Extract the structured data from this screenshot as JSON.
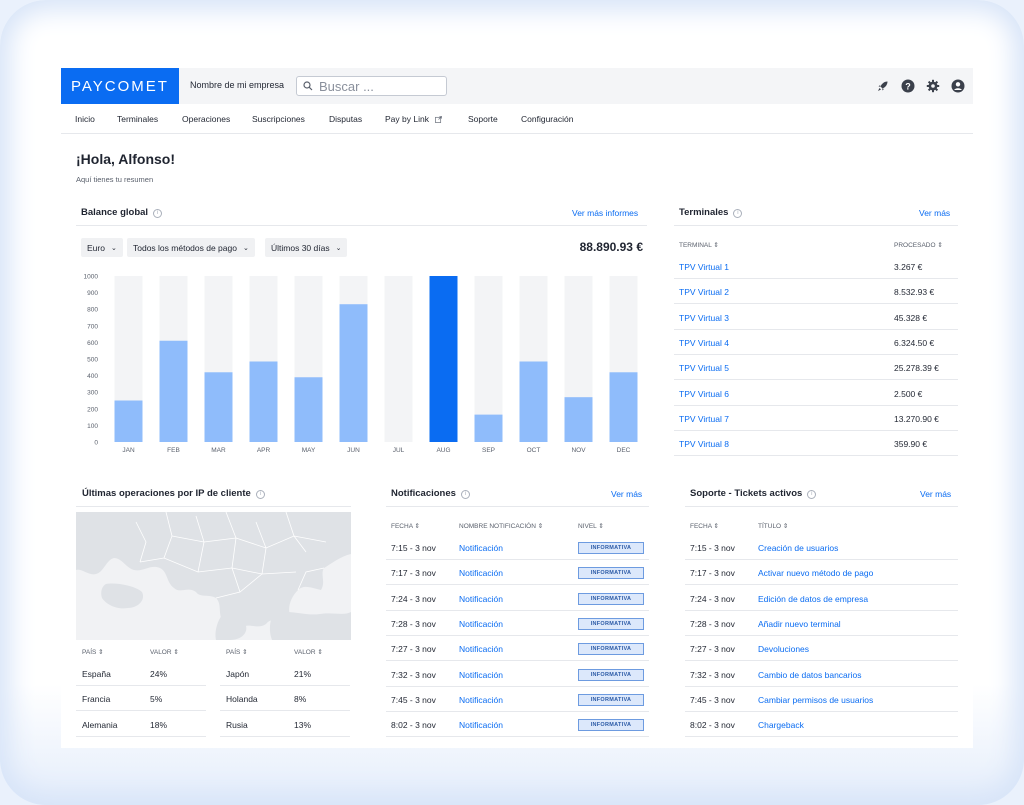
{
  "brand": {
    "logo": "PAYCOMET",
    "accent": "#0a6cf2"
  },
  "topbar": {
    "company": "Nombre de mi empresa",
    "search_placeholder": "Buscar ...",
    "icons": [
      "rocket-icon",
      "help-icon",
      "settings-icon",
      "user-icon"
    ]
  },
  "nav": [
    "Inicio",
    "Terminales",
    "Operaciones",
    "Suscripciones",
    "Disputas",
    "Pay by Link",
    "Soporte",
    "Configuración"
  ],
  "greeting": {
    "title": "¡Hola, Alfonso!",
    "subtitle": "Aquí tienes tu resumen"
  },
  "balance": {
    "title": "Balance global",
    "link": "Ver más informes",
    "filters": {
      "currency": "Euro",
      "methods": "Todos los métodos de pago",
      "period": "Últimos 30 días"
    },
    "total": "88.890.93 €"
  },
  "chart_data": {
    "type": "bar",
    "categories": [
      "JAN",
      "FEB",
      "MAR",
      "APR",
      "MAY",
      "JUN",
      "JUL",
      "AUG",
      "SEP",
      "OCT",
      "NOV",
      "DEC"
    ],
    "values": [
      250,
      610,
      420,
      485,
      390,
      830,
      0,
      1000,
      165,
      485,
      270,
      420
    ],
    "highlight_index": 7,
    "ylim": [
      0,
      1000
    ],
    "yticks": [
      0,
      100,
      200,
      300,
      400,
      500,
      600,
      700,
      800,
      900,
      1000
    ],
    "bar_color": "#8fbcfb",
    "highlight_color": "#0a6cf2",
    "xlabel": "",
    "ylabel": "",
    "title": ""
  },
  "terminals": {
    "title": "Terminales",
    "link": "Ver más",
    "headers": [
      "TERMINAL ⇕",
      "PROCESADO ⇕"
    ],
    "rows": [
      [
        "TPV Virtual 1",
        "3.267 €"
      ],
      [
        "TPV Virtual 2",
        "8.532.93 €"
      ],
      [
        "TPV Virtual 3",
        "45.328 €"
      ],
      [
        "TPV Virtual 4",
        "6.324.50 €"
      ],
      [
        "TPV Virtual 5",
        "25.278.39 €"
      ],
      [
        "TPV Virtual 6",
        "2.500 €"
      ],
      [
        "TPV Virtual 7",
        "13.270.90 €"
      ],
      [
        "TPV Virtual 8",
        "359.90 €"
      ]
    ]
  },
  "ip": {
    "title": "Últimas operaciones por IP de cliente",
    "headers": [
      "PAÍS ⇕",
      "VALOR ⇕",
      "PAÍS ⇕",
      "VALOR ⇕"
    ],
    "left": [
      [
        "España",
        "24%"
      ],
      [
        "Francia",
        "5%"
      ],
      [
        "Alemania",
        "18%"
      ]
    ],
    "right": [
      [
        "Japón",
        "21%"
      ],
      [
        "Holanda",
        "8%"
      ],
      [
        "Rusia",
        "13%"
      ]
    ]
  },
  "notifications": {
    "title": "Notificaciones",
    "link": "Ver más",
    "headers": [
      "FECHA ⇕",
      "NOMBRE NOTIFICACIÓN ⇕",
      "NIVEL ⇕"
    ],
    "rows": [
      [
        "7:15 - 3 nov",
        "Notificación",
        "INFORMATIVA"
      ],
      [
        "7:17 - 3 nov",
        "Notificación",
        "INFORMATIVA"
      ],
      [
        "7:24 - 3 nov",
        "Notificación",
        "INFORMATIVA"
      ],
      [
        "7:28 - 3 nov",
        "Notificación",
        "INFORMATIVA"
      ],
      [
        "7:27 - 3 nov",
        "Notificación",
        "INFORMATIVA"
      ],
      [
        "7:32 - 3 nov",
        "Notificación",
        "INFORMATIVA"
      ],
      [
        "7:45 - 3 nov",
        "Notificación",
        "INFORMATIVA"
      ],
      [
        "8:02 - 3 nov",
        "Notificación",
        "INFORMATIVA"
      ]
    ]
  },
  "tickets": {
    "title": "Soporte - Tickets activos",
    "link": "Ver más",
    "headers": [
      "FECHA ⇕",
      "TÍTULO ⇕"
    ],
    "rows": [
      [
        "7:15 - 3 nov",
        "Creación de usuarios"
      ],
      [
        "7:17 - 3 nov",
        "Activar nuevo método de pago"
      ],
      [
        "7:24 - 3 nov",
        "Edición de datos de empresa"
      ],
      [
        "7:28 - 3 nov",
        "Añadir nuevo terminal"
      ],
      [
        "7:27 - 3 nov",
        "Devoluciones"
      ],
      [
        "7:32 - 3 nov",
        "Cambio de datos bancarios"
      ],
      [
        "7:45 - 3 nov",
        "Cambiar permisos de usuarios"
      ],
      [
        "8:02 - 3 nov",
        "Chargeback"
      ]
    ]
  }
}
